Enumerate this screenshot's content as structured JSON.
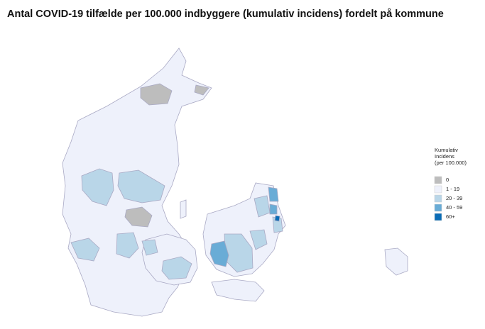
{
  "title": "Antal COVID-19 tilfælde per 100.000 indbyggere (kumulativ incidens) fordelt på kommune",
  "legend": {
    "title": [
      "Kumulativ",
      "Incidens",
      "(per 100.000)"
    ],
    "items": [
      {
        "label": "0",
        "color": "#bdbdbd"
      },
      {
        "label": "1 - 19",
        "color": "#eef1fb"
      },
      {
        "label": "20 - 39",
        "color": "#b9d6e8"
      },
      {
        "label": "40 - 59",
        "color": "#69acd6"
      },
      {
        "label": "60+",
        "color": "#0a6cb6"
      }
    ]
  }
}
